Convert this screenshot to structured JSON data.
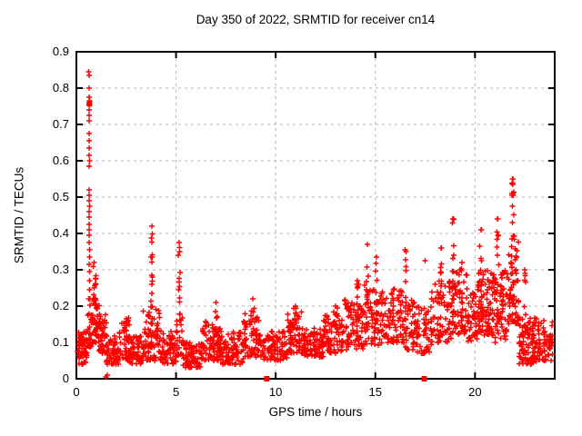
{
  "chart_data": {
    "type": "scatter",
    "title": "Day 350 of 2022, SRMTID for receiver cn14",
    "xlabel": "GPS time / hours",
    "ylabel": "SRMTID / TECUs",
    "xlim": [
      0,
      24
    ],
    "ylim": [
      0,
      0.9
    ],
    "xticks": [
      "0",
      "5",
      "10",
      "15",
      "20"
    ],
    "xtick_values": [
      0,
      5,
      10,
      15,
      20
    ],
    "yticks": [
      "0",
      "0.1",
      "0.2",
      "0.3",
      "0.4",
      "0.5",
      "0.6",
      "0.7",
      "0.8",
      "0.9"
    ],
    "ytick_values": [
      0,
      0.1,
      0.2,
      0.3,
      0.4,
      0.5,
      0.6,
      0.7,
      0.8,
      0.9
    ],
    "grid": true,
    "legend": "none",
    "marker": "plus",
    "marker_color": "#ff0000",
    "grid_color": "#b3b3b3",
    "frame_color": "#000000",
    "series_summary": "SRMTID vs GPS time for receiver cn14, day 350 of 2022; noisy baseline 0.03-0.2 TECUs all day, large spike to 0.845 at ~0.65 h, spikes 0.42 at ~3.8 h and 0.38 at ~5.15 h, activity rising after 13 h with peaks 0.37-0.44 (14.6, 16.5, 18.9, 20.3, 21.15 h) and maximum 0.55 near 21.9 h; red square markers on the axis at 9.55 h and 17.45 h",
    "baseline_segments": [
      [
        0.05,
        0.55,
        60,
        0.04,
        0.13
      ],
      [
        0.55,
        0.8,
        22,
        0.08,
        0.22
      ],
      [
        0.8,
        1.15,
        40,
        0.1,
        0.3
      ],
      [
        1.15,
        1.5,
        40,
        0.07,
        0.18
      ],
      [
        1.5,
        2.1,
        55,
        0.04,
        0.12
      ],
      [
        2.1,
        2.65,
        50,
        0.05,
        0.17
      ],
      [
        2.65,
        3.35,
        65,
        0.04,
        0.12
      ],
      [
        3.35,
        4.3,
        85,
        0.05,
        0.2
      ],
      [
        4.3,
        5.0,
        60,
        0.04,
        0.13
      ],
      [
        5.0,
        5.35,
        25,
        0.06,
        0.18
      ],
      [
        5.35,
        6.3,
        80,
        0.03,
        0.1
      ],
      [
        6.3,
        7.3,
        85,
        0.05,
        0.16
      ],
      [
        7.3,
        8.4,
        85,
        0.04,
        0.13
      ],
      [
        8.4,
        9.4,
        70,
        0.06,
        0.18
      ],
      [
        9.4,
        10.6,
        85,
        0.05,
        0.13
      ],
      [
        10.6,
        11.4,
        60,
        0.07,
        0.19
      ],
      [
        11.4,
        12.4,
        75,
        0.06,
        0.14
      ],
      [
        12.4,
        13.4,
        75,
        0.07,
        0.18
      ],
      [
        13.4,
        14.4,
        75,
        0.08,
        0.22
      ],
      [
        14.4,
        15.4,
        70,
        0.09,
        0.26
      ],
      [
        15.4,
        16.4,
        75,
        0.1,
        0.25
      ],
      [
        16.4,
        17.1,
        50,
        0.08,
        0.22
      ],
      [
        17.1,
        17.8,
        50,
        0.07,
        0.2
      ],
      [
        17.8,
        18.8,
        70,
        0.1,
        0.27
      ],
      [
        18.8,
        19.6,
        60,
        0.12,
        0.3
      ],
      [
        19.6,
        20.1,
        40,
        0.1,
        0.25
      ],
      [
        20.1,
        21.0,
        85,
        0.12,
        0.3
      ],
      [
        21.0,
        21.6,
        55,
        0.1,
        0.3
      ],
      [
        21.6,
        22.2,
        60,
        0.15,
        0.4
      ],
      [
        22.2,
        23.1,
        95,
        0.04,
        0.17
      ],
      [
        23.1,
        23.9,
        60,
        0.05,
        0.16
      ]
    ],
    "spike_columns": [
      [
        0.9,
        0.25,
        0.14,
        0.32,
        14
      ],
      [
        3.78,
        0.1,
        0.15,
        0.42,
        16
      ],
      [
        5.15,
        0.1,
        0.12,
        0.375,
        11
      ],
      [
        7.0,
        0.15,
        0.12,
        0.21,
        8
      ],
      [
        8.85,
        0.2,
        0.12,
        0.22,
        8
      ],
      [
        11.0,
        0.3,
        0.1,
        0.2,
        10
      ],
      [
        13.0,
        0.2,
        0.1,
        0.2,
        8
      ],
      [
        14.1,
        0.15,
        0.12,
        0.27,
        9
      ],
      [
        14.6,
        0.1,
        0.15,
        0.37,
        10
      ],
      [
        15.05,
        0.1,
        0.15,
        0.335,
        9
      ],
      [
        16.5,
        0.12,
        0.12,
        0.355,
        10
      ],
      [
        18.3,
        0.15,
        0.12,
        0.36,
        11
      ],
      [
        18.9,
        0.1,
        0.15,
        0.44,
        10
      ],
      [
        19.35,
        0.1,
        0.14,
        0.32,
        8
      ],
      [
        20.3,
        0.12,
        0.15,
        0.41,
        12
      ],
      [
        21.15,
        0.12,
        0.15,
        0.44,
        11
      ],
      [
        21.9,
        0.14,
        0.2,
        0.55,
        18
      ],
      [
        22.5,
        0.1,
        0.08,
        0.3,
        8
      ]
    ],
    "notable_points": [
      [
        0.62,
        0.845
      ],
      [
        0.63,
        0.835
      ],
      [
        0.635,
        0.8
      ],
      [
        0.64,
        0.775
      ],
      [
        0.655,
        0.765
      ],
      [
        0.635,
        0.755
      ],
      [
        0.645,
        0.74
      ],
      [
        0.64,
        0.725
      ],
      [
        0.63,
        0.71
      ],
      [
        0.65,
        0.675
      ],
      [
        0.645,
        0.655
      ],
      [
        0.65,
        0.635
      ],
      [
        0.64,
        0.615
      ],
      [
        0.66,
        0.6
      ],
      [
        0.65,
        0.585
      ],
      [
        0.635,
        0.52
      ],
      [
        0.645,
        0.505
      ],
      [
        0.64,
        0.49
      ],
      [
        0.655,
        0.475
      ],
      [
        0.635,
        0.46
      ],
      [
        0.645,
        0.445
      ],
      [
        0.65,
        0.425
      ],
      [
        0.645,
        0.41
      ],
      [
        0.635,
        0.395
      ],
      [
        0.645,
        0.375
      ],
      [
        0.655,
        0.355
      ],
      [
        0.66,
        0.335
      ],
      [
        0.65,
        0.315
      ],
      [
        0.66,
        0.295
      ],
      [
        0.67,
        0.27
      ],
      [
        0.665,
        0.245
      ],
      [
        0.68,
        0.22
      ],
      [
        21.88,
        0.55
      ],
      [
        21.9,
        0.535
      ],
      [
        21.86,
        0.51
      ],
      [
        21.91,
        0.51
      ],
      [
        21.93,
        0.505
      ],
      [
        21.88,
        0.475
      ],
      [
        17.5,
        0.325
      ],
      [
        18.92,
        0.44
      ],
      [
        21.13,
        0.44
      ],
      [
        20.32,
        0.41
      ]
    ],
    "zero_points": [
      [
        1.48,
        0.005
      ],
      [
        1.56,
        0.01
      ]
    ],
    "square_markers": [
      [
        9.55,
        0
      ],
      [
        17.45,
        0
      ],
      [
        0.655,
        0.757
      ]
    ]
  }
}
